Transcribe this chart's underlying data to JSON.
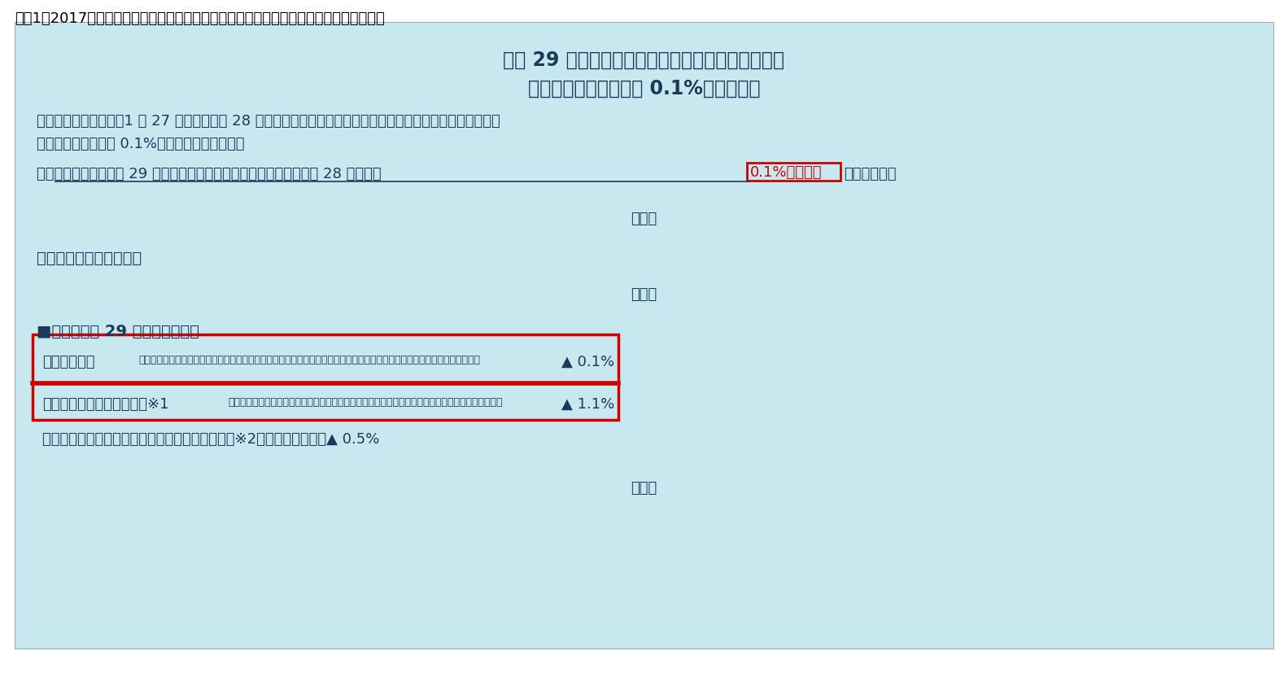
{
  "figure_title": "図表1　2017年度の年金額改定に関する厄生労働省のプレスリリース（３つの見方関連）",
  "bg_color": "#c8e8f0",
  "outer_bg": "#ffffff",
  "box_title_line1": "平成 29 年度の年金額改定についてお知らせします",
  "box_title_line2": "～年金額は昨年度から 0.1%の引下げ～",
  "para1_line1": "　総務省から、本日（1 月 27 日）、「平成 28 年平均の全国消費者物価指数」（生鮮食品を含む総合指数）が",
  "para1_line2": "公表され、対前年比 0.1%の下落となりました。",
  "para2_pre": "　これを踏まえ、平成 29 年度の年金額は、法律の規定により、平成 28 年度から ",
  "para2_boxed": "0.1%の引下げ",
  "para2_post": "となります。",
  "ryaku1": "（略）",
  "section_title": "【年金額の改定ルール】",
  "ryaku2": "（略）",
  "ref_title": "■参考：平成 29 年度の参考指標",
  "bullet1_pre": "・物価変動率",
  "bullet1_dots": "・・・・・・・・・・・・・・・・・・・・・・・・・・・・・・・・・・・・・・・・・・・・・・・・・・・・・・・・",
  "bullet1_value": "▲ 0.1%",
  "bullet2_pre": "・名目手取り賃金変動率　※1",
  "bullet2_dots": "・・・・・・・・・・・・・・・・・・・・・・・・・・・・・・・・・・・・・・・・・・・・・",
  "bullet2_value": "▲ 1.1%",
  "bullet3_line": "・マクロ経済スライドによる「スライド調整率」※2・・・・・・・・▲ 0.5%",
  "ryaku3": "（略）",
  "text_color": "#1a3a5c",
  "red_color": "#cc0000",
  "underline_color": "#1a3a5c"
}
